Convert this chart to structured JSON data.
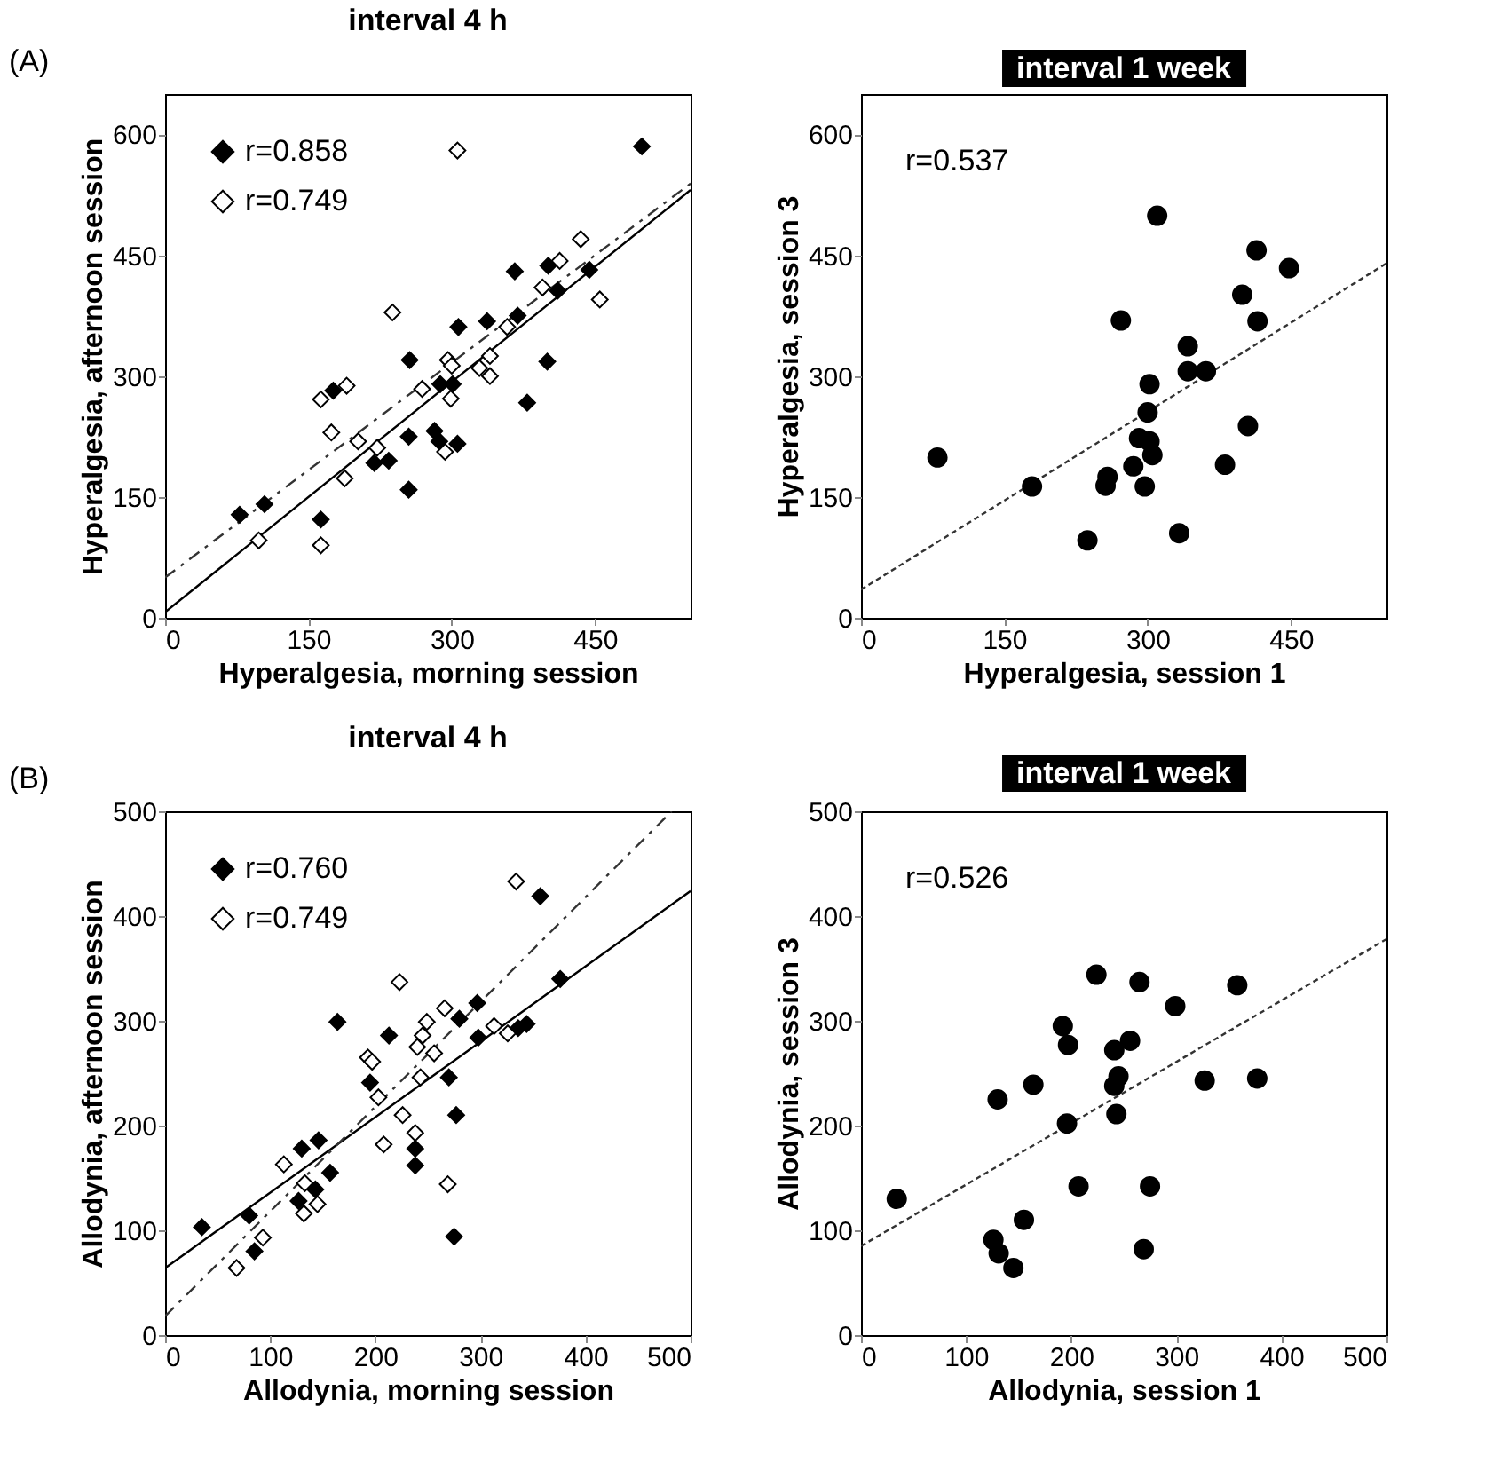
{
  "chart_data": [
    {
      "type": "scatter",
      "title": "interval 4 h",
      "xlabel": "Hyperalgesia, morning session",
      "ylabel": "Hyperalgesia, afternoon session",
      "annotations": [
        "(A)"
      ],
      "marker": "diamond",
      "legend": "top left",
      "grid": false,
      "xlim": [
        0,
        550
      ],
      "ylim": [
        0,
        650
      ],
      "xticks": [
        0,
        150,
        300,
        450
      ],
      "yticks": [
        0,
        150,
        300,
        450,
        600
      ],
      "series": [
        {
          "name": "r=0.858",
          "color": "#000000",
          "x": [
            78,
            104,
            163,
            176,
            219,
            234,
            255,
            255,
            256,
            282,
            287,
            288,
            301,
            306,
            307,
            337,
            369,
            366,
            379,
            400,
            401,
            411,
            444,
            499
          ],
          "values": [
            128,
            141,
            122,
            282,
            192,
            195,
            159,
            225,
            320,
            232,
            219,
            290,
            290,
            216,
            361,
            368,
            375,
            430,
            267,
            318,
            437,
            406,
            432,
            585
          ]
        },
        {
          "name": "r=0.749",
          "color": "#ffffff",
          "x": [
            306,
            435,
            413,
            455,
            395,
            358,
            238,
            340,
            329,
            340,
            296,
            300,
            299,
            269,
            190,
            163,
            174,
            202,
            222,
            293,
            188,
            98,
            163
          ],
          "values": [
            580,
            470,
            443,
            395,
            410,
            361,
            379,
            325,
            310,
            300,
            320,
            313,
            272,
            284,
            288,
            271,
            230,
            219,
            211,
            206,
            173,
            96,
            90
          ]
        },
        {
          "type": "line",
          "marker": "none",
          "color": "#000000",
          "line_style": "solid",
          "x": [
            0,
            550
          ],
          "values": [
            7,
            531
          ]
        },
        {
          "type": "line",
          "marker": "none",
          "color": "#333333",
          "line_style": "dashed",
          "x": [
            0,
            550
          ],
          "values": [
            50,
            539
          ]
        }
      ]
    },
    {
      "type": "scatter",
      "title": "interval 1 week",
      "xlabel": "Hyperalgesia, session 1",
      "ylabel": "Hyperalgesia, session 3",
      "annotations": [
        "r=0.537"
      ],
      "marker": "circle",
      "grid": false,
      "xlim": [
        0,
        550
      ],
      "ylim": [
        0,
        650
      ],
      "xticks": [
        0,
        150,
        300,
        450
      ],
      "yticks": [
        0,
        150,
        300,
        450,
        600
      ],
      "series": [
        {
          "color": "#000000",
          "x": [
            80,
            179,
            237,
            258,
            256,
            272,
            285,
            291,
            297,
            302,
            305,
            300,
            302,
            310,
            333,
            342,
            342,
            361,
            381,
            399,
            405,
            414,
            415,
            448
          ],
          "values": [
            199,
            163,
            96,
            175,
            164,
            369,
            188,
            223,
            163,
            219,
            202,
            255,
            290,
            499,
            105,
            337,
            306,
            306,
            190,
            401,
            238,
            456,
            368,
            434
          ]
        },
        {
          "type": "line",
          "marker": "none",
          "color": "#333333",
          "line_style": "dotted",
          "x": [
            0,
            550
          ],
          "values": [
            35,
            440
          ]
        }
      ]
    },
    {
      "type": "scatter",
      "title": "interval 4 h",
      "xlabel": "Allodynia, morning session",
      "ylabel": "Allodynia, afternoon session",
      "annotations": [
        "(B)"
      ],
      "marker": "diamond",
      "legend": "top left",
      "grid": false,
      "xlim": [
        0,
        500
      ],
      "ylim": [
        0,
        500
      ],
      "xticks": [
        0,
        100,
        200,
        300,
        400,
        500
      ],
      "yticks": [
        0,
        100,
        200,
        300,
        400,
        500
      ],
      "series": [
        {
          "name": "r=0.760",
          "color": "#000000",
          "x": [
            35,
            80,
            85,
            130,
            146,
            127,
            143,
            157,
            164,
            195,
            213,
            238,
            238,
            270,
            277,
            275,
            280,
            297,
            298,
            336,
            344,
            357,
            376
          ],
          "values": [
            103,
            114,
            80,
            178,
            186,
            128,
            139,
            155,
            299,
            241,
            286,
            178,
            162,
            246,
            210,
            94,
            302,
            317,
            284,
            293,
            297,
            419,
            340
          ]
        },
        {
          "name": "r=0.749",
          "color": "#ffffff",
          "x": [
            68,
            93,
            113,
            132,
            133,
            145,
            193,
            197,
            203,
            208,
            226,
            223,
            240,
            238,
            243,
            245,
            249,
            256,
            266,
            269,
            313,
            326,
            334
          ],
          "values": [
            64,
            93,
            163,
            116,
            145,
            125,
            265,
            261,
            227,
            182,
            210,
            337,
            275,
            193,
            246,
            286,
            299,
            269,
            312,
            144,
            295,
            288,
            433
          ]
        },
        {
          "type": "line",
          "marker": "none",
          "color": "#000000",
          "line_style": "solid",
          "x": [
            0,
            500
          ],
          "values": [
            64,
            424
          ]
        },
        {
          "type": "line",
          "marker": "none",
          "color": "#333333",
          "line_style": "dashed",
          "x": [
            0,
            482
          ],
          "values": [
            18,
            500
          ]
        }
      ]
    },
    {
      "type": "scatter",
      "title": "interval 1 week",
      "xlabel": "Allodynia, session 1",
      "ylabel": "Allodynia, session 3",
      "annotations": [
        "r=0.526"
      ],
      "marker": "circle",
      "grid": false,
      "xlim": [
        0,
        500
      ],
      "ylim": [
        0,
        500
      ],
      "xticks": [
        0,
        100,
        200,
        300,
        400,
        500
      ],
      "yticks": [
        0,
        100,
        200,
        300,
        400,
        500
      ],
      "series": [
        {
          "color": "#000000",
          "x": [
            34,
            126,
            131,
            145,
            155,
            130,
            164,
            192,
            197,
            196,
            207,
            224,
            241,
            245,
            241,
            243,
            256,
            265,
            275,
            269,
            299,
            327,
            358,
            377
          ],
          "values": [
            130,
            91,
            78,
            64,
            110,
            225,
            239,
            295,
            277,
            202,
            142,
            344,
            272,
            247,
            238,
            211,
            281,
            337,
            142,
            82,
            314,
            243,
            334,
            245
          ]
        },
        {
          "type": "line",
          "marker": "none",
          "color": "#333333",
          "line_style": "dotted",
          "x": [
            0,
            500
          ],
          "values": [
            85,
            378
          ]
        }
      ]
    }
  ]
}
